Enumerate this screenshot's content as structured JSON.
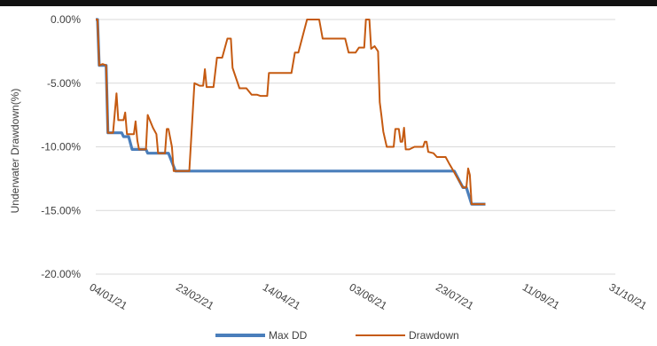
{
  "chart_data": {
    "type": "line",
    "title": "",
    "xlabel": "",
    "ylabel": "Underwater Drawdown(%)",
    "x_ticks": [
      "04/01/21",
      "23/02/21",
      "14/04/21",
      "03/06/21",
      "23/07/21",
      "11/09/21",
      "31/10/21"
    ],
    "y_ticks": [
      "0.00%",
      "-5.00%",
      "-10.00%",
      "-15.00%",
      "-20.00%"
    ],
    "xlim": [
      "2021-01-04",
      "2021-10-31"
    ],
    "ylim": [
      -20,
      0
    ],
    "grid": "horizontal",
    "legend_position": "bottom",
    "series": [
      {
        "name": "Max DD",
        "color": "#4a7ebb",
        "points": [
          [
            "2021-01-04",
            0.0
          ],
          [
            "2021-01-05",
            0.0
          ],
          [
            "2021-01-06",
            -3.6
          ],
          [
            "2021-01-10",
            -3.6
          ],
          [
            "2021-01-11",
            -8.9
          ],
          [
            "2021-01-19",
            -8.9
          ],
          [
            "2021-01-20",
            -9.2
          ],
          [
            "2021-01-23",
            -9.2
          ],
          [
            "2021-01-25",
            -10.2
          ],
          [
            "2021-02-02",
            -10.2
          ],
          [
            "2021-02-03",
            -10.5
          ],
          [
            "2021-02-15",
            -10.5
          ],
          [
            "2021-02-19",
            -11.9
          ],
          [
            "2021-07-30",
            -11.9
          ],
          [
            "2021-08-04",
            -13.2
          ],
          [
            "2021-08-06",
            -13.2
          ],
          [
            "2021-08-09",
            -14.5
          ],
          [
            "2021-08-17",
            -14.5
          ]
        ]
      },
      {
        "name": "Drawdown",
        "color": "#c55a11",
        "points": [
          [
            "2021-01-04",
            0.0
          ],
          [
            "2021-01-05",
            0.0
          ],
          [
            "2021-01-06",
            -3.6
          ],
          [
            "2021-01-08",
            -3.5
          ],
          [
            "2021-01-10",
            -3.6
          ],
          [
            "2021-01-11",
            -8.9
          ],
          [
            "2021-01-14",
            -8.9
          ],
          [
            "2021-01-16",
            -5.8
          ],
          [
            "2021-01-17",
            -7.9
          ],
          [
            "2021-01-20",
            -7.9
          ],
          [
            "2021-01-21",
            -7.3
          ],
          [
            "2021-01-22",
            -9.0
          ],
          [
            "2021-01-26",
            -9.0
          ],
          [
            "2021-01-27",
            -8.0
          ],
          [
            "2021-01-28",
            -9.5
          ],
          [
            "2021-01-29",
            -10.2
          ],
          [
            "2021-02-02",
            -10.2
          ],
          [
            "2021-02-03",
            -7.5
          ],
          [
            "2021-02-06",
            -8.5
          ],
          [
            "2021-02-08",
            -9.0
          ],
          [
            "2021-02-09",
            -10.5
          ],
          [
            "2021-02-13",
            -10.5
          ],
          [
            "2021-02-14",
            -8.6
          ],
          [
            "2021-02-15",
            -8.6
          ],
          [
            "2021-02-17",
            -10.0
          ],
          [
            "2021-02-18",
            -11.9
          ],
          [
            "2021-02-27",
            -11.9
          ],
          [
            "2021-03-02",
            -5.0
          ],
          [
            "2021-03-05",
            -5.2
          ],
          [
            "2021-03-07",
            -5.2
          ],
          [
            "2021-03-08",
            -3.9
          ],
          [
            "2021-03-09",
            -5.3
          ],
          [
            "2021-03-13",
            -5.3
          ],
          [
            "2021-03-15",
            -3.0
          ],
          [
            "2021-03-18",
            -3.0
          ],
          [
            "2021-03-21",
            -1.5
          ],
          [
            "2021-03-23",
            -1.5
          ],
          [
            "2021-03-24",
            -3.8
          ],
          [
            "2021-03-28",
            -5.4
          ],
          [
            "2021-04-01",
            -5.4
          ],
          [
            "2021-04-04",
            -5.9
          ],
          [
            "2021-04-07",
            -5.9
          ],
          [
            "2021-04-09",
            -6.0
          ],
          [
            "2021-04-13",
            -6.0
          ],
          [
            "2021-04-14",
            -4.2
          ],
          [
            "2021-04-27",
            -4.2
          ],
          [
            "2021-04-29",
            -2.6
          ],
          [
            "2021-05-01",
            -2.6
          ],
          [
            "2021-05-06",
            0.0
          ],
          [
            "2021-05-13",
            0.0
          ],
          [
            "2021-05-15",
            -1.5
          ],
          [
            "2021-05-28",
            -1.5
          ],
          [
            "2021-05-30",
            -2.6
          ],
          [
            "2021-06-03",
            -2.6
          ],
          [
            "2021-06-05",
            -2.2
          ],
          [
            "2021-06-08",
            -2.2
          ],
          [
            "2021-06-09",
            0.0
          ],
          [
            "2021-06-11",
            0.0
          ],
          [
            "2021-06-12",
            -2.3
          ],
          [
            "2021-06-14",
            -2.1
          ],
          [
            "2021-06-16",
            -2.5
          ],
          [
            "2021-06-17",
            -6.5
          ],
          [
            "2021-06-18",
            -7.6
          ],
          [
            "2021-06-19",
            -8.8
          ],
          [
            "2021-06-21",
            -10.0
          ],
          [
            "2021-06-25",
            -10.0
          ],
          [
            "2021-06-26",
            -8.6
          ],
          [
            "2021-06-28",
            -8.6
          ],
          [
            "2021-06-29",
            -9.6
          ],
          [
            "2021-06-30",
            -9.6
          ],
          [
            "2021-07-01",
            -8.5
          ],
          [
            "2021-07-02",
            -10.2
          ],
          [
            "2021-07-04",
            -10.2
          ],
          [
            "2021-07-07",
            -10.0
          ],
          [
            "2021-07-12",
            -10.0
          ],
          [
            "2021-07-13",
            -9.6
          ],
          [
            "2021-07-14",
            -9.6
          ],
          [
            "2021-07-15",
            -10.4
          ],
          [
            "2021-07-18",
            -10.5
          ],
          [
            "2021-07-20",
            -10.8
          ],
          [
            "2021-07-25",
            -10.8
          ],
          [
            "2021-07-27",
            -11.3
          ],
          [
            "2021-07-30",
            -12.0
          ],
          [
            "2021-08-04",
            -13.2
          ],
          [
            "2021-08-06",
            -13.2
          ],
          [
            "2021-08-07",
            -11.7
          ],
          [
            "2021-08-08",
            -12.2
          ],
          [
            "2021-08-09",
            -14.5
          ],
          [
            "2021-08-17",
            -14.5
          ]
        ]
      }
    ]
  }
}
